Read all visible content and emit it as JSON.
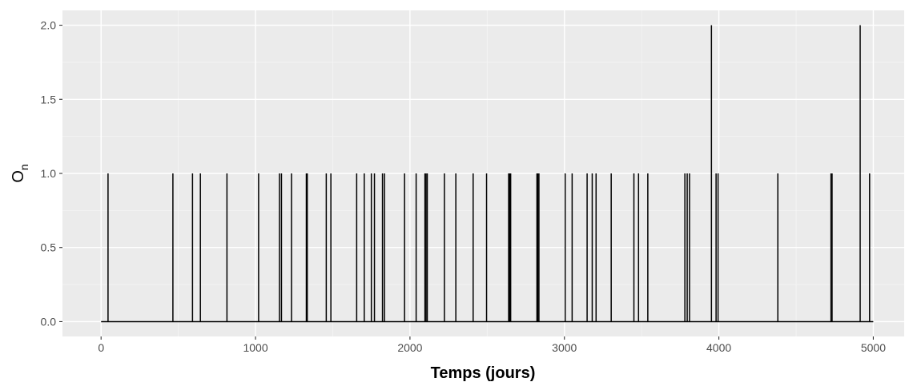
{
  "chart_data": {
    "type": "line",
    "title": "",
    "xlabel": "Temps (jours)",
    "ylabel_main": "O",
    "ylabel_sub": "n",
    "xlim": [
      -250,
      5200
    ],
    "ylim": [
      -0.1,
      2.1
    ],
    "x_ticks": [
      0,
      1000,
      2000,
      3000,
      4000,
      5000
    ],
    "x_tick_labels": [
      "0",
      "1000",
      "2000",
      "3000",
      "4000",
      "5000"
    ],
    "y_ticks": [
      0.0,
      0.5,
      1.0,
      1.5,
      2.0
    ],
    "y_tick_labels": [
      "0.0",
      "0.5",
      "1.0",
      "1.5",
      "2.0"
    ],
    "grid": true,
    "baseline": {
      "x_start": 0,
      "x_end": 5000,
      "y": 0
    },
    "series": [
      {
        "spikes": [
          {
            "x": 45,
            "y": 1
          },
          {
            "x": 465,
            "y": 1
          },
          {
            "x": 592,
            "y": 1
          },
          {
            "x": 643,
            "y": 1
          },
          {
            "x": 815,
            "y": 1
          },
          {
            "x": 1020,
            "y": 1
          },
          {
            "x": 1155,
            "y": 1
          },
          {
            "x": 1168,
            "y": 1
          },
          {
            "x": 1233,
            "y": 1
          },
          {
            "x": 1329,
            "y": 1
          },
          {
            "x": 1335,
            "y": 1
          },
          {
            "x": 1458,
            "y": 1
          },
          {
            "x": 1488,
            "y": 1
          },
          {
            "x": 1655,
            "y": 1
          },
          {
            "x": 1704,
            "y": 1
          },
          {
            "x": 1750,
            "y": 1
          },
          {
            "x": 1770,
            "y": 1
          },
          {
            "x": 1822,
            "y": 1
          },
          {
            "x": 1835,
            "y": 1
          },
          {
            "x": 1965,
            "y": 1
          },
          {
            "x": 2040,
            "y": 1
          },
          {
            "x": 2097,
            "y": 1
          },
          {
            "x": 2104,
            "y": 1
          },
          {
            "x": 2112,
            "y": 1
          },
          {
            "x": 2223,
            "y": 1
          },
          {
            "x": 2297,
            "y": 1
          },
          {
            "x": 2409,
            "y": 1
          },
          {
            "x": 2496,
            "y": 1
          },
          {
            "x": 2639,
            "y": 1
          },
          {
            "x": 2645,
            "y": 1
          },
          {
            "x": 2652,
            "y": 1
          },
          {
            "x": 2822,
            "y": 1
          },
          {
            "x": 2828,
            "y": 1
          },
          {
            "x": 2835,
            "y": 1
          },
          {
            "x": 3005,
            "y": 1
          },
          {
            "x": 3050,
            "y": 1
          },
          {
            "x": 3147,
            "y": 1
          },
          {
            "x": 3180,
            "y": 1
          },
          {
            "x": 3205,
            "y": 1
          },
          {
            "x": 3303,
            "y": 1
          },
          {
            "x": 3450,
            "y": 1
          },
          {
            "x": 3480,
            "y": 1
          },
          {
            "x": 3540,
            "y": 1
          },
          {
            "x": 3780,
            "y": 1
          },
          {
            "x": 3795,
            "y": 1
          },
          {
            "x": 3810,
            "y": 1
          },
          {
            "x": 3952,
            "y": 2
          },
          {
            "x": 3982,
            "y": 1
          },
          {
            "x": 3995,
            "y": 1
          },
          {
            "x": 4382,
            "y": 1
          },
          {
            "x": 4726,
            "y": 1
          },
          {
            "x": 4733,
            "y": 1
          },
          {
            "x": 4915,
            "y": 2
          },
          {
            "x": 4976,
            "y": 1
          }
        ]
      }
    ]
  }
}
